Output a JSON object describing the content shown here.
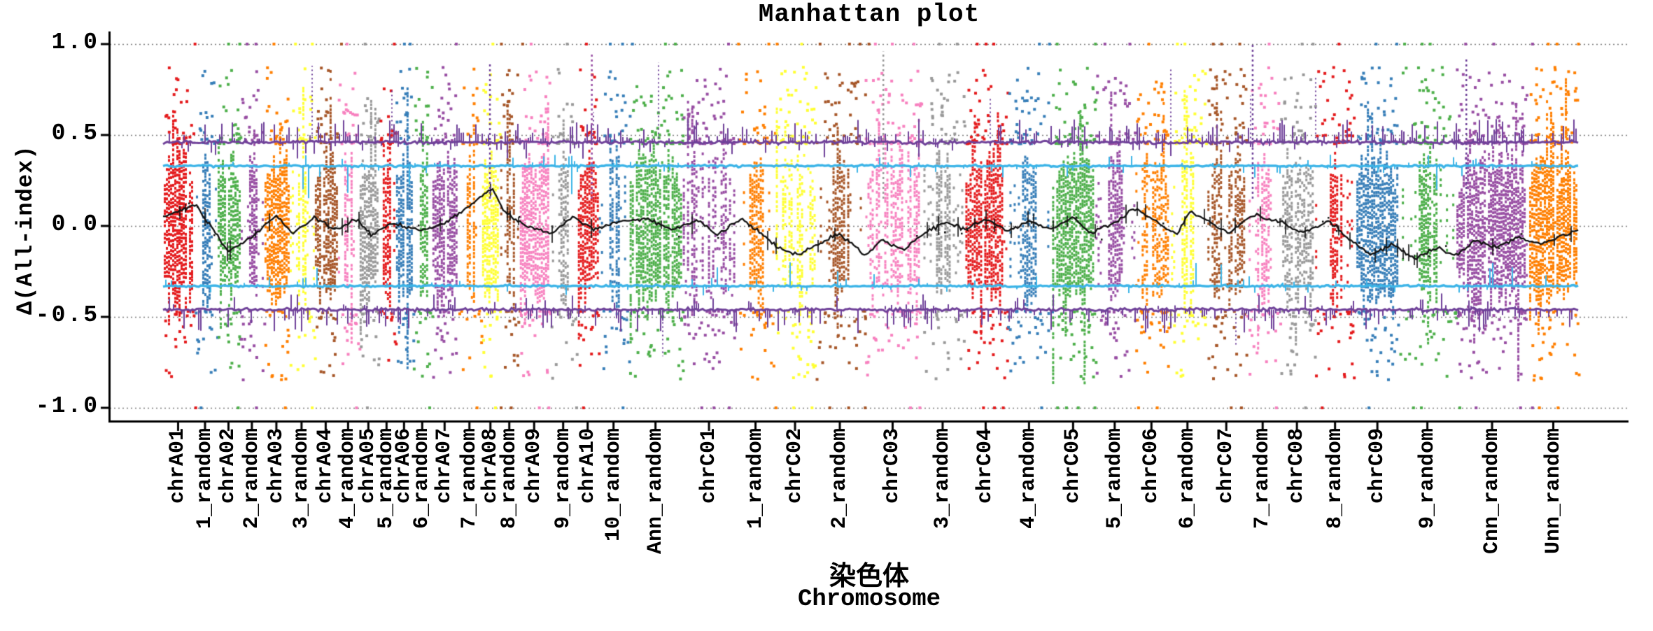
{
  "figure": {
    "title": "Manhattan plot",
    "background": "#ffffff"
  },
  "axes": {
    "ylabel": "Δ(All-index)",
    "xlabel_primary": "染色体",
    "xlabel_secondary": "Chromosome"
  },
  "chart_data": {
    "type": "scatter",
    "subtype": "manhattan",
    "title": "Manhattan plot",
    "ylabel": "Δ(All-index)",
    "xlabel": "染色体 / Chromosome",
    "ylim": [
      -1.07,
      1.07
    ],
    "yticks": [
      1.0,
      0.5,
      0.0,
      -0.5,
      -1.0
    ],
    "ytick_labels": [
      "1.0",
      "0.5",
      "0.0",
      "-0.5",
      "-1.0"
    ],
    "grid": {
      "show": true,
      "orientation": "horizontal",
      "values": [
        1.0,
        0.5,
        0.0,
        -0.5,
        -1.0
      ],
      "style": "dotted",
      "color": "#777777"
    },
    "legend": "none",
    "palette": [
      "#e41a1c",
      "#377eb8",
      "#4daf4a",
      "#984ea3",
      "#ff7f00",
      "#ffff33",
      "#a65628",
      "#f781bf",
      "#999999"
    ],
    "categories": [
      "chrA01",
      "1_random",
      "chrA02",
      "2_random",
      "chrA03",
      "3_random",
      "chrA04",
      "4_random",
      "chrA05",
      "5_random",
      "chrA06",
      "6_random",
      "chrA07",
      "7_random",
      "chrA08",
      "8_random",
      "chrA09",
      "9_random",
      "chrA10",
      "10_random",
      "Ann_random",
      "chrC01",
      "1_random",
      "chrC02",
      "2_random",
      "chrC03",
      "3_random",
      "chrC04",
      "4_random",
      "chrC05",
      "5_random",
      "chrC06",
      "6_random",
      "chrC07",
      "7_random",
      "chrC08",
      "8_random",
      "chrC09",
      "9_random",
      "Cnn_random",
      "Unn_random"
    ],
    "chromosomes": [
      {
        "label": "chrA01",
        "color": "#e41a1c",
        "weight": 43,
        "style": "dense"
      },
      {
        "label": "1_random",
        "color": "#377eb8",
        "weight": 34,
        "style": "sliver"
      },
      {
        "label": "chrA02",
        "color": "#4daf4a",
        "weight": 33,
        "style": "dense"
      },
      {
        "label": "2_random",
        "color": "#984ea3",
        "weight": 34,
        "style": "sliver"
      },
      {
        "label": "chrA03",
        "color": "#ff7f00",
        "weight": 36,
        "style": "dense"
      },
      {
        "label": "3_random",
        "color": "#ffff33",
        "weight": 36,
        "style": "sliver"
      },
      {
        "label": "chrA04",
        "color": "#a65628",
        "weight": 33,
        "style": "dense"
      },
      {
        "label": "4_random",
        "color": "#f781bf",
        "weight": 31,
        "style": "sliver"
      },
      {
        "label": "chrA05",
        "color": "#999999",
        "weight": 27,
        "style": "dense"
      },
      {
        "label": "5_random",
        "color": "#e41a1c",
        "weight": 25,
        "style": "sliver"
      },
      {
        "label": "chrA06",
        "color": "#377eb8",
        "weight": 25,
        "style": "dense"
      },
      {
        "label": "6_random",
        "color": "#4daf4a",
        "weight": 27,
        "style": "sliver"
      },
      {
        "label": "chrA07",
        "color": "#984ea3",
        "weight": 37,
        "style": "dense"
      },
      {
        "label": "7_random",
        "color": "#ff7f00",
        "weight": 34,
        "style": "sliver"
      },
      {
        "label": "chrA08",
        "color": "#ffff33",
        "weight": 26,
        "style": "dense"
      },
      {
        "label": "8_random",
        "color": "#a65628",
        "weight": 28,
        "style": "sliver"
      },
      {
        "label": "chrA09",
        "color": "#f781bf",
        "weight": 43,
        "style": "dense"
      },
      {
        "label": "9_random",
        "color": "#999999",
        "weight": 40,
        "style": "sliver"
      },
      {
        "label": "chrA10",
        "color": "#e41a1c",
        "weight": 30,
        "style": "dense"
      },
      {
        "label": "10_random",
        "color": "#377eb8",
        "weight": 44,
        "style": "sliver"
      },
      {
        "label": "Ann_random",
        "color": "#4daf4a",
        "weight": 76,
        "style": "dense"
      },
      {
        "label": "chrC01",
        "color": "#984ea3",
        "weight": 77,
        "style": "streaky"
      },
      {
        "label": "1_random",
        "color": "#ff7f00",
        "weight": 56,
        "style": "sliver"
      },
      {
        "label": "chrC02",
        "color": "#ffff33",
        "weight": 57,
        "style": "streaky"
      },
      {
        "label": "2_random",
        "color": "#a65628",
        "weight": 71,
        "style": "sliver"
      },
      {
        "label": "chrC03",
        "color": "#f781bf",
        "weight": 80,
        "style": "streaky"
      },
      {
        "label": "3_random",
        "color": "#999999",
        "weight": 63,
        "style": "sliver"
      },
      {
        "label": "chrC04",
        "color": "#e41a1c",
        "weight": 60,
        "style": "dense"
      },
      {
        "label": "4_random",
        "color": "#377eb8",
        "weight": 64,
        "style": "sliver"
      },
      {
        "label": "chrC05",
        "color": "#4daf4a",
        "weight": 62,
        "style": "dense"
      },
      {
        "label": "5_random",
        "color": "#984ea3",
        "weight": 57,
        "style": "sliver"
      },
      {
        "label": "chrC06",
        "color": "#ff7f00",
        "weight": 48,
        "style": "streaky"
      },
      {
        "label": "6_random",
        "color": "#ffff33",
        "weight": 55,
        "style": "sliver"
      },
      {
        "label": "chrC07",
        "color": "#a65628",
        "weight": 56,
        "style": "streaky"
      },
      {
        "label": "7_random",
        "color": "#f781bf",
        "weight": 48,
        "style": "sliver"
      },
      {
        "label": "chrC08",
        "color": "#999999",
        "weight": 50,
        "style": "streaky"
      },
      {
        "label": "8_random",
        "color": "#e41a1c",
        "weight": 59,
        "style": "sliver"
      },
      {
        "label": "chrC09",
        "color": "#377eb8",
        "weight": 62,
        "style": "dense"
      },
      {
        "label": "9_random",
        "color": "#4daf4a",
        "weight": 81,
        "style": "sliver"
      },
      {
        "label": "Cnn_random",
        "color": "#984ea3",
        "weight": 104,
        "style": "dense"
      },
      {
        "label": "Unn_random",
        "color": "#ff7f00",
        "weight": 71,
        "style": "dense"
      }
    ],
    "reference_lines": [
      {
        "label": "upper-deviation-band",
        "value": 0.46,
        "color": "#6f4199",
        "style": "spiky-band"
      },
      {
        "label": "upper-threshold-line",
        "value": 0.33,
        "color": "#3cb4e7",
        "style": "noisy-line"
      },
      {
        "label": "mean-line",
        "value": 0.0,
        "color": "#111111",
        "style": "mean-line"
      },
      {
        "label": "lower-threshold-line",
        "value": -0.33,
        "color": "#3cb4e7",
        "style": "noisy-line"
      },
      {
        "label": "lower-deviation-band",
        "value": -0.46,
        "color": "#6f4199",
        "style": "spiky-band"
      }
    ],
    "clipped_point_rows": [
      1.0,
      -1.0
    ],
    "scatter_core_range": [
      -0.43,
      0.43
    ],
    "mean_line_waypoints": [
      [
        0,
        0.05
      ],
      [
        0.023,
        0.12
      ],
      [
        0.046,
        -0.14
      ],
      [
        0.063,
        -0.06
      ],
      [
        0.08,
        0.06
      ],
      [
        0.092,
        -0.04
      ],
      [
        0.107,
        0.05
      ],
      [
        0.122,
        -0.02
      ],
      [
        0.137,
        0.04
      ],
      [
        0.147,
        -0.05
      ],
      [
        0.162,
        0.02
      ],
      [
        0.182,
        -0.03
      ],
      [
        0.201,
        0.02
      ],
      [
        0.226,
        0.17
      ],
      [
        0.233,
        0.21
      ],
      [
        0.241,
        0.08
      ],
      [
        0.256,
        0
      ],
      [
        0.275,
        -0.04
      ],
      [
        0.29,
        0.05
      ],
      [
        0.305,
        -0.02
      ],
      [
        0.32,
        0.02
      ],
      [
        0.343,
        0.04
      ],
      [
        0.36,
        -0.02
      ],
      [
        0.379,
        0.03
      ],
      [
        0.391,
        -0.05
      ],
      [
        0.409,
        0.04
      ],
      [
        0.419,
        -0.02
      ],
      [
        0.434,
        -0.12
      ],
      [
        0.449,
        -0.16
      ],
      [
        0.463,
        -0.1
      ],
      [
        0.478,
        -0.04
      ],
      [
        0.496,
        -0.16
      ],
      [
        0.508,
        -0.08
      ],
      [
        0.523,
        -0.13
      ],
      [
        0.538,
        -0.04
      ],
      [
        0.553,
        0.02
      ],
      [
        0.567,
        -0.02
      ],
      [
        0.58,
        0.04
      ],
      [
        0.597,
        -0.03
      ],
      [
        0.612,
        0.03
      ],
      [
        0.627,
        -0.02
      ],
      [
        0.643,
        0.05
      ],
      [
        0.656,
        -0.04
      ],
      [
        0.673,
        0.02
      ],
      [
        0.686,
        0.1
      ],
      [
        0.699,
        0.04
      ],
      [
        0.716,
        -0.05
      ],
      [
        0.726,
        0.08
      ],
      [
        0.74,
        0.02
      ],
      [
        0.753,
        -0.04
      ],
      [
        0.77,
        0.06
      ],
      [
        0.79,
        0.02
      ],
      [
        0.805,
        -0.04
      ],
      [
        0.824,
        0.03
      ],
      [
        0.839,
        -0.08
      ],
      [
        0.854,
        -0.16
      ],
      [
        0.869,
        -0.1
      ],
      [
        0.884,
        -0.18
      ],
      [
        0.899,
        -0.12
      ],
      [
        0.913,
        -0.16
      ],
      [
        0.928,
        -0.08
      ],
      [
        0.943,
        -0.12
      ],
      [
        0.958,
        -0.06
      ],
      [
        0.973,
        -0.1
      ],
      [
        0.99,
        -0.05
      ],
      [
        1,
        -0.02
      ]
    ],
    "spike_lines": [
      {
        "xf": 0.231,
        "value": 0.9,
        "color": "#6f4199"
      },
      {
        "xf": 0.303,
        "value": 0.95,
        "color": "#984ea3"
      },
      {
        "xf": 0.509,
        "value": 0.96,
        "color": "#999999"
      },
      {
        "xf": 0.77,
        "value": 1.0,
        "color": "#6f4199"
      },
      {
        "xf": 0.921,
        "value": 0.93,
        "color": "#6f4199"
      }
    ]
  }
}
